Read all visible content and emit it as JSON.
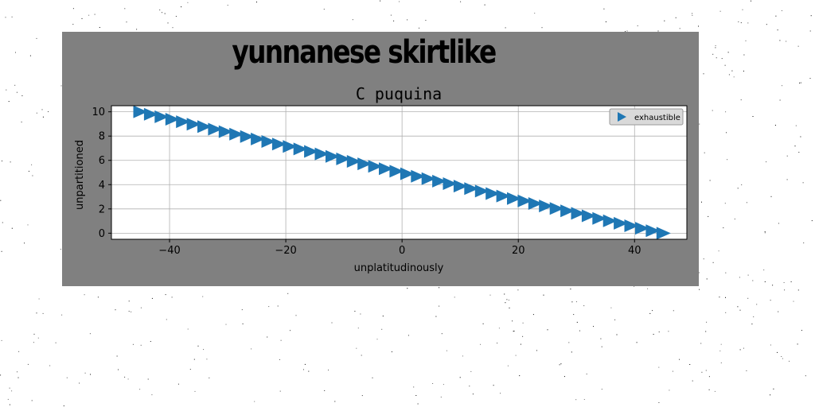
{
  "figure": {
    "suptitle": "yunnanese skirtlike",
    "background": "#808080"
  },
  "chart_data": {
    "type": "scatter",
    "title": "C puquina",
    "xlabel": "unplatitudinously",
    "ylabel": "unpartitioned",
    "xlim": [
      -50,
      49
    ],
    "ylim": [
      -0.5,
      10.5
    ],
    "xticks": [
      -40,
      -20,
      0,
      20,
      40
    ],
    "yticks": [
      0,
      2,
      4,
      6,
      8,
      10
    ],
    "grid": true,
    "legend_position": "top-right",
    "series": [
      {
        "name": "exhaustible",
        "marker": "triangle-right",
        "color": "#1f77b4",
        "x_start": -45,
        "x_end": 45,
        "y_start": 10,
        "y_end": 0,
        "count": 50
      }
    ]
  }
}
